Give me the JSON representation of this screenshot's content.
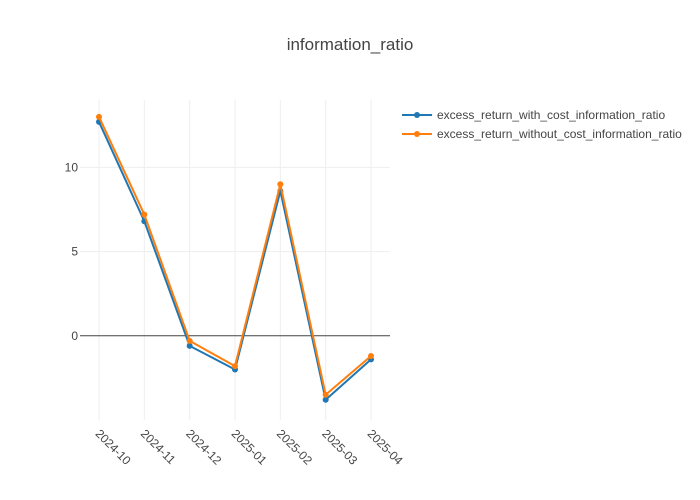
{
  "chart_data": {
    "type": "line",
    "title": "information_ratio",
    "xlabel": "",
    "ylabel": "",
    "categories": [
      "2024-10",
      "2024-11",
      "2024-12",
      "2025-01",
      "2025-02",
      "2025-03",
      "2025-04"
    ],
    "y_ticks": [
      0,
      5,
      10
    ],
    "ylim": [
      -5,
      14
    ],
    "grid": true,
    "legend_position": "top-right",
    "series": [
      {
        "name": "excess_return_with_cost_information_ratio",
        "color": "#1f77b4",
        "values": [
          12.7,
          6.8,
          -0.6,
          -2.0,
          8.6,
          -3.8,
          -1.4
        ]
      },
      {
        "name": "excess_return_without_cost_information_ratio",
        "color": "#ff7f0e",
        "values": [
          13.0,
          7.2,
          -0.3,
          -1.8,
          9.0,
          -3.5,
          -1.2
        ]
      }
    ]
  }
}
